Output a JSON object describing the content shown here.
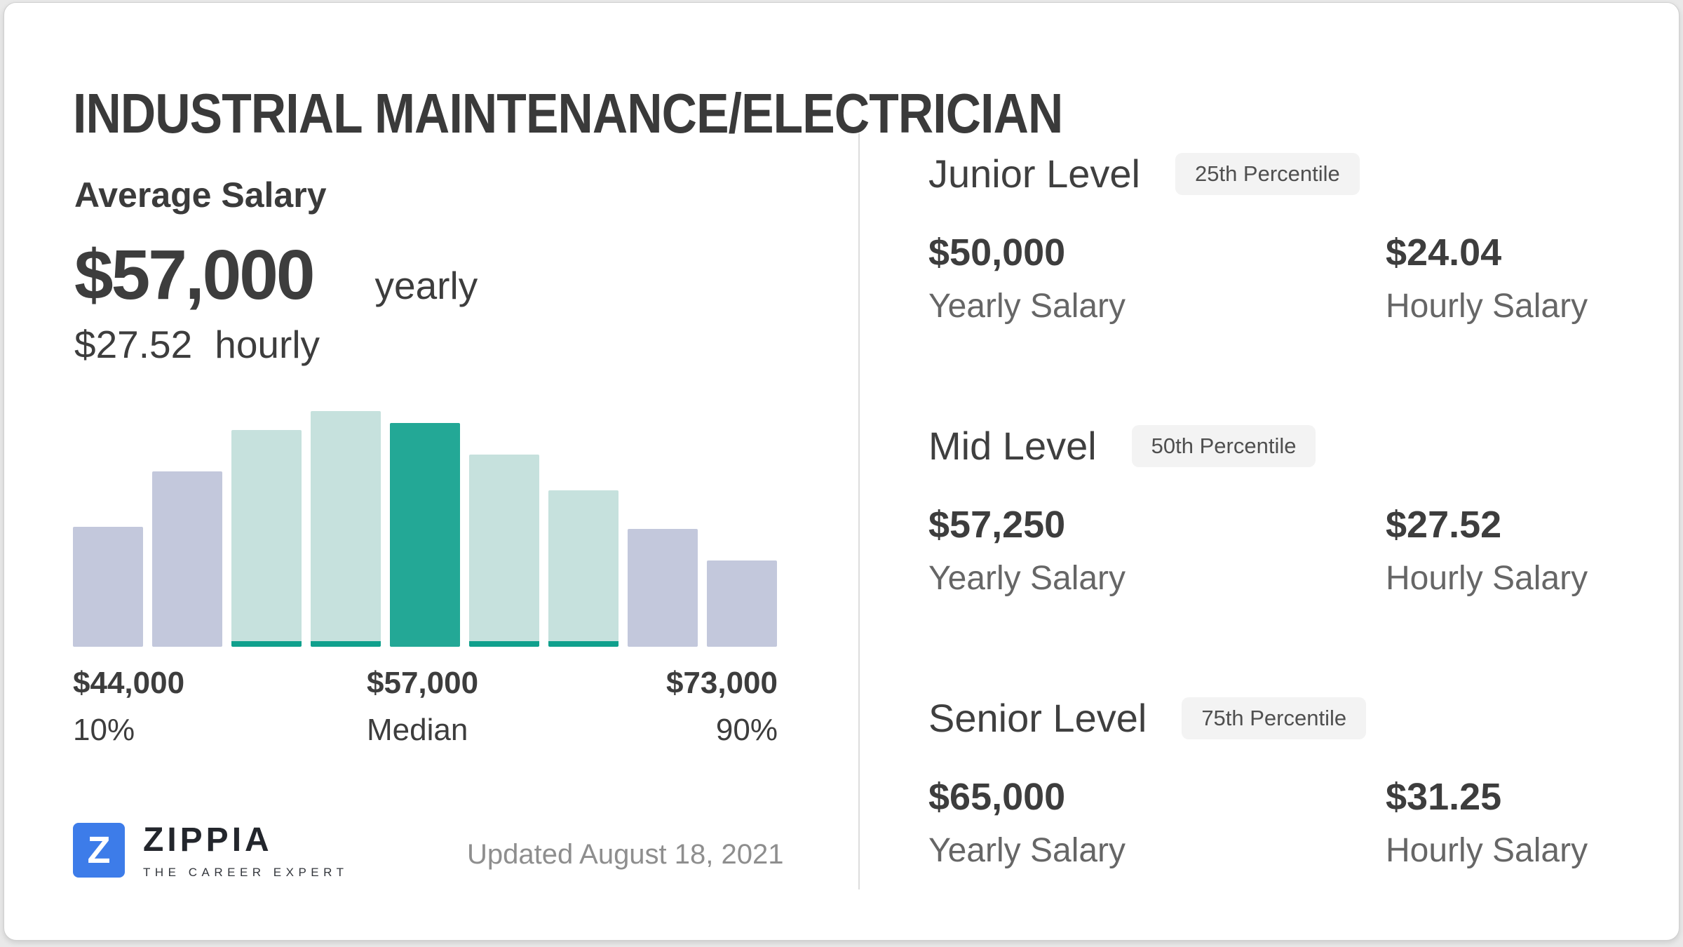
{
  "page": {
    "title": "INDUSTRIAL MAINTENANCE/ELECTRICIAN"
  },
  "average": {
    "label": "Average Salary",
    "yearly_value": "$57,000",
    "yearly_unit": "yearly",
    "hourly_value": "$27.52",
    "hourly_unit": "hourly"
  },
  "chart_data": {
    "type": "bar",
    "title": "Salary distribution histogram",
    "values_pct": [
      50,
      73,
      90,
      98,
      93,
      80,
      65,
      49,
      36
    ],
    "colors": [
      "lavender",
      "lavender",
      "teal-light",
      "teal-light",
      "teal-dark",
      "teal-light",
      "teal-light",
      "lavender",
      "lavender"
    ],
    "palette": {
      "lavender": "#c3c8dc",
      "teal-light": "#c6e1dd",
      "teal-dark": "#23a896",
      "accent": "#10a08d"
    },
    "axis_labels": [
      {
        "value": "$44,000",
        "caption": "10%"
      },
      {
        "value": "$57,000",
        "caption": "Median"
      },
      {
        "value": "$73,000",
        "caption": "90%"
      }
    ],
    "xlabel": "",
    "ylabel": "",
    "grid": false,
    "legend": false
  },
  "footer": {
    "logo_letter": "Z",
    "logo_name": "ZIPPIA",
    "logo_tagline": "THE CAREER EXPERT",
    "updated": "Updated August 18, 2021"
  },
  "levels": [
    {
      "title": "Junior Level",
      "badge": "25th Percentile",
      "yearly_value": "$50,000",
      "yearly_label": "Yearly Salary",
      "hourly_value": "$24.04",
      "hourly_label": "Hourly Salary"
    },
    {
      "title": "Mid Level",
      "badge": "50th Percentile",
      "yearly_value": "$57,250",
      "yearly_label": "Yearly Salary",
      "hourly_value": "$27.52",
      "hourly_label": "Hourly Salary"
    },
    {
      "title": "Senior Level",
      "badge": "75th Percentile",
      "yearly_value": "$65,000",
      "yearly_label": "Yearly Salary",
      "hourly_value": "$31.25",
      "hourly_label": "Hourly Salary"
    }
  ]
}
